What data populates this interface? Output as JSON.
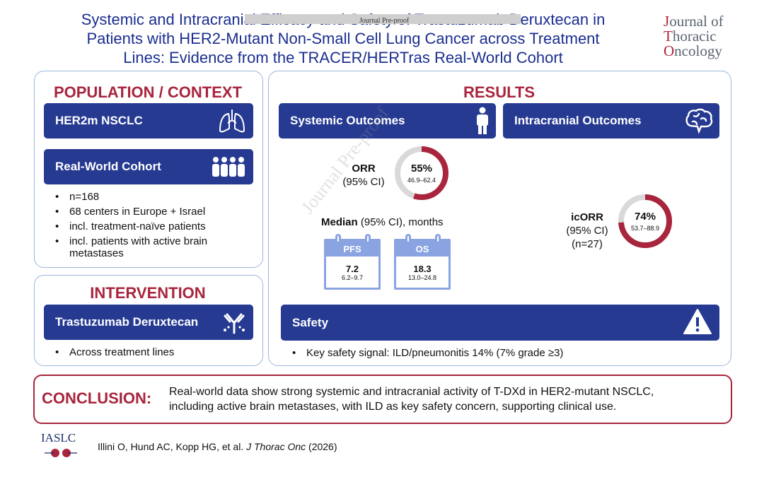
{
  "header": {
    "title_lines": [
      "Systemic and Intracranial Efficacy and Safety of Trastuzumab Deruxtecan in",
      "Patients with HER2-Mutant Non-Small Cell Lung Cancer across Treatment",
      "Lines: Evidence from the TRACER/HERTras Real-World Cohort"
    ],
    "journal_overlay": "Journal Pre-proof",
    "journal_logo": {
      "j": "J",
      "l1": "ournal of",
      "t": "T",
      "l2": "horacic",
      "o": "O",
      "l3": "ncology"
    }
  },
  "population": {
    "heading": "POPULATION / CONTEXT",
    "bar1": "HER2m NSCLC",
    "bar2": "Real-World Cohort",
    "bullets": [
      "n=168",
      "68 centers in Europe + Israel",
      "incl. treatment-naïve patients",
      "incl. patients with active brain metastases"
    ]
  },
  "intervention": {
    "heading": "INTERVENTION",
    "bar": "Trastuzumab Deruxtecan",
    "bullets": [
      "Across treatment lines"
    ]
  },
  "results": {
    "heading": "RESULTS",
    "systemic_bar": "Systemic Outcomes",
    "intracranial_bar": "Intracranial Outcomes",
    "orr": {
      "label1": "ORR",
      "label2": "(95% CI)",
      "pct": "55%",
      "ci": "46.9–62.4",
      "fraction": 0.55
    },
    "median_label_bold": "Median",
    "median_label_rest": " (95% CI), months",
    "pfs": {
      "label": "PFS",
      "value": "7.2",
      "ci": "6.2–9.7"
    },
    "os": {
      "label": "OS",
      "value": "18.3",
      "ci": "13.0–24.8"
    },
    "icorr": {
      "label1": "icORR",
      "label2": "(95% CI)",
      "label3": "(n=27)",
      "pct": "74%",
      "ci": "53.7–88.9",
      "fraction": 0.74
    },
    "safety_bar": "Safety",
    "safety_bullet": "Key safety signal: ILD/pneumonitis 14% (7% grade ≥3)"
  },
  "conclusion": {
    "label": "CONCLUSION:",
    "line1": "Real-world data show strong systemic and intracranial activity of T-DXd in HER2-mutant NSCLC,",
    "line2": "including active brain metastases, with ILD as key safety concern, supporting clinical use."
  },
  "footer": {
    "logo": "IASLC",
    "citation_plain": "Illini O, Hund AC, Kopp HG, et al. ",
    "citation_italic": "J Thorac Onc",
    "citation_year": " (2026)"
  },
  "watermark": "Journal Pre-proof",
  "colors": {
    "navy": "#263a92",
    "crimson": "#a8253d",
    "light_blue": "#8aa4e2",
    "ring_bg": "#d9d9d9"
  },
  "icons": [
    "lungs-icon",
    "people-icon",
    "antibody-icon",
    "person-icon",
    "brain-icon",
    "warning-icon",
    "calendar-icon"
  ]
}
